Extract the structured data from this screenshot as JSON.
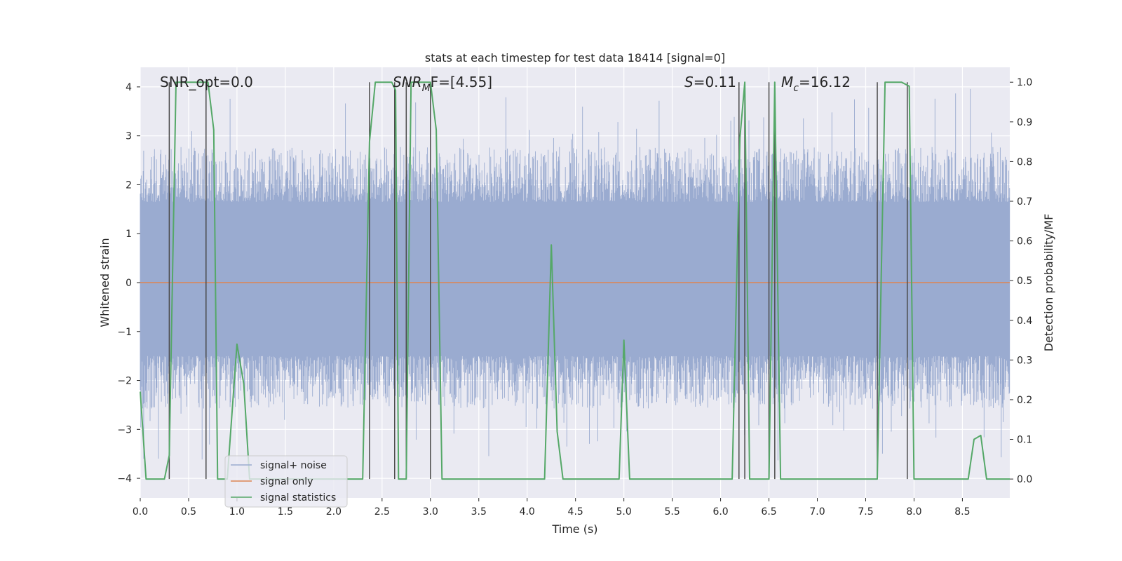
{
  "chart_data": {
    "type": "line",
    "title": "stats at each timestep for test data 18414 [signal=0]",
    "xlabel": "Time (s)",
    "ylabel": "Whitened strain",
    "ylabel_right": "Detection probability/MF",
    "xlim": [
      0,
      8.99
    ],
    "ylim": [
      -4.4,
      4.4
    ],
    "ylim_right": [
      -0.0475,
      1.0375
    ],
    "x_ticks": [
      0.0,
      0.5,
      1.0,
      1.5,
      2.0,
      2.5,
      3.0,
      3.5,
      4.0,
      4.5,
      5.0,
      5.5,
      6.0,
      6.5,
      7.0,
      7.5,
      8.0,
      8.5
    ],
    "x_tick_labels": [
      "0.0",
      "0.5",
      "1.0",
      "1.5",
      "2.0",
      "2.5",
      "3.0",
      "3.5",
      "4.0",
      "4.5",
      "5.0",
      "5.5",
      "6.0",
      "6.5",
      "7.0",
      "7.5",
      "8.0",
      "8.5"
    ],
    "y_ticks": [
      -4,
      -3,
      -2,
      -1,
      0,
      1,
      2,
      3,
      4
    ],
    "y_tick_labels": [
      "−4",
      "−3",
      "−2",
      "−1",
      "0",
      "1",
      "2",
      "3",
      "4"
    ],
    "y_ticks_right": [
      0.0,
      0.1,
      0.2,
      0.3,
      0.4,
      0.5,
      0.6,
      0.7,
      0.8,
      0.9,
      1.0
    ],
    "y_tick_labels_right": [
      "0.0",
      "0.1",
      "0.2",
      "0.3",
      "0.4",
      "0.5",
      "0.6",
      "0.7",
      "0.8",
      "0.9",
      "1.0"
    ],
    "grid": true,
    "legend_position": "lower-left",
    "annotations": {
      "snr_opt": "SNR_opt=0.0",
      "snr_mf_main": "SNR",
      "snr_mf_sub": "M",
      "snr_mf_rest": "F=[4.55]",
      "s_main": "S",
      "s_rest": "=0.11",
      "mc_main": "M",
      "mc_sub": "c",
      "mc_rest": "=16.12"
    },
    "series": [
      {
        "name": "signal+ noise",
        "color": "#9aabd0",
        "style": "noise",
        "envelope": {
          "core_range": [
            -1.5,
            1.65
          ],
          "typical_peak": 2.8,
          "max_positive": 4.0,
          "max_negative": -3.65
        }
      },
      {
        "name": "signal only",
        "color": "#dd8452",
        "x": [
          0.0,
          8.99
        ],
        "y": [
          0.0,
          0.0
        ]
      },
      {
        "name": "signal statistics",
        "color": "#55a868",
        "axis": "right",
        "x": [
          0.0,
          0.06,
          0.25,
          0.3,
          0.37,
          0.7,
          0.76,
          0.8,
          0.9,
          1.0,
          1.07,
          1.13,
          1.2,
          2.3,
          2.37,
          2.43,
          2.6,
          2.64,
          2.67,
          2.75,
          2.8,
          2.83,
          3.0,
          3.06,
          3.12,
          4.18,
          4.25,
          4.31,
          4.37,
          4.95,
          5.0,
          5.06,
          5.12,
          6.12,
          6.2,
          6.25,
          6.3,
          6.37,
          6.5,
          6.56,
          6.62,
          6.75,
          7.62,
          7.7,
          7.75,
          7.87,
          7.95,
          8.0,
          8.56,
          8.62,
          8.69,
          8.75,
          8.82,
          8.99
        ],
        "y": [
          0.22,
          0.0,
          0.0,
          0.06,
          1.0,
          1.0,
          0.88,
          0.0,
          0.0,
          0.34,
          0.24,
          0.0,
          0.0,
          0.0,
          0.85,
          1.0,
          1.0,
          0.98,
          0.0,
          0.0,
          1.0,
          1.0,
          1.0,
          0.88,
          0.0,
          0.0,
          0.59,
          0.12,
          0.0,
          0.0,
          0.35,
          0.0,
          0.0,
          0.0,
          0.86,
          1.0,
          0.0,
          0.0,
          0.0,
          1.0,
          0.0,
          0.0,
          0.0,
          1.0,
          1.0,
          1.0,
          0.99,
          0.0,
          0.0,
          0.1,
          0.11,
          0.0,
          0.0,
          0.0
        ]
      }
    ],
    "vertical_lines": [
      0.3,
      0.68,
      2.37,
      2.63,
      2.75,
      3.0,
      6.19,
      6.25,
      6.5,
      6.56,
      7.62,
      7.93
    ]
  }
}
